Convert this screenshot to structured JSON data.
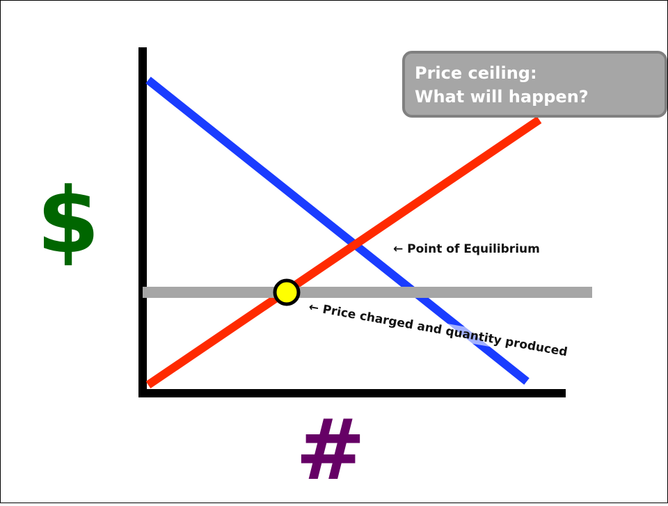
{
  "y_axis_label": "$",
  "x_axis_label": "#",
  "callout": {
    "lines": [
      "Price ceiling:",
      "What will happen?"
    ]
  },
  "annotations": {
    "equilibrium": "← Point of Equilibrium",
    "ceiling_point": "← Price charged and quantity produced"
  }
}
